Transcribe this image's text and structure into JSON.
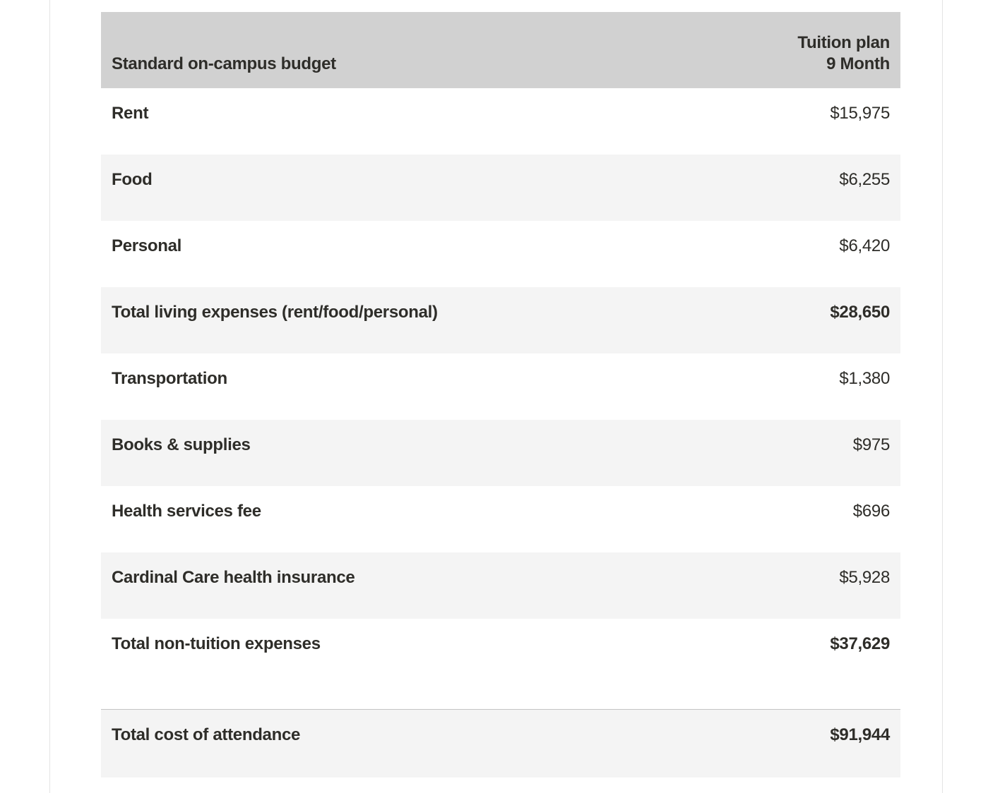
{
  "table": {
    "header": {
      "col1": "Standard on-campus budget",
      "col2_line1": "Tuition plan",
      "col2_line2": "9 Month"
    },
    "rows": [
      {
        "label": "Rent",
        "value": "$15,975"
      },
      {
        "label": "Food",
        "value": "$6,255"
      },
      {
        "label": "Personal",
        "value": "$6,420"
      },
      {
        "label": "Total living expenses (rent/food/personal)",
        "value": "$28,650"
      },
      {
        "label": "Transportation",
        "value": "$1,380"
      },
      {
        "label": "Books & supplies",
        "value": "$975"
      },
      {
        "label": "Health services fee",
        "value": "$696"
      },
      {
        "label": "Cardinal Care health insurance",
        "value": "$5,928"
      },
      {
        "label": "Total non-tuition expenses",
        "value": "$37,629"
      }
    ],
    "footer": {
      "label": "Total cost of attendance",
      "value": "$91,944"
    }
  },
  "colors": {
    "header_bg": "#d1d1d1",
    "row_alt_bg": "#f4f4f4",
    "text": "#2e2d29",
    "footer_rule": "#c4c4c4",
    "page_rule": "#e4e4e4"
  }
}
